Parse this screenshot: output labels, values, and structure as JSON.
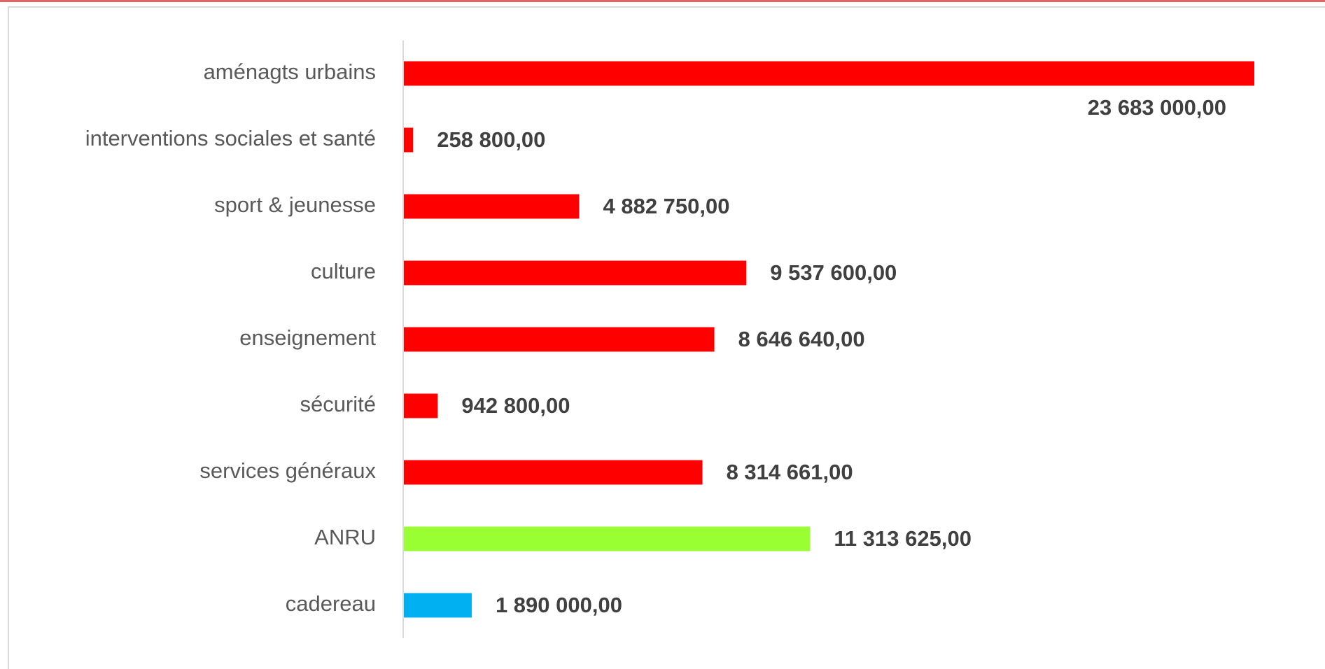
{
  "chart_data": {
    "type": "hbar",
    "categories": [
      "aménagts urbains",
      "interventions sociales et santé",
      "sport & jeunesse",
      "culture",
      "enseignement",
      "sécurité",
      "services généraux",
      "ANRU",
      "cadereau"
    ],
    "values": [
      23683000,
      258800,
      4882750,
      9537600,
      8646640,
      942800,
      8314661,
      11313625,
      1890000
    ],
    "value_labels": [
      "23 683 000,00",
      "258 800,00",
      "4 882 750,00",
      "9 537 600,00",
      "8 646 640,00",
      "942 800,00",
      "8 314 661,00",
      "11 313 625,00",
      "1 890 000,00"
    ],
    "colors": [
      "#ff0000",
      "#ff0000",
      "#ff0000",
      "#ff0000",
      "#ff0000",
      "#ff0000",
      "#ff0000",
      "#99ff33",
      "#00b0f0"
    ]
  }
}
